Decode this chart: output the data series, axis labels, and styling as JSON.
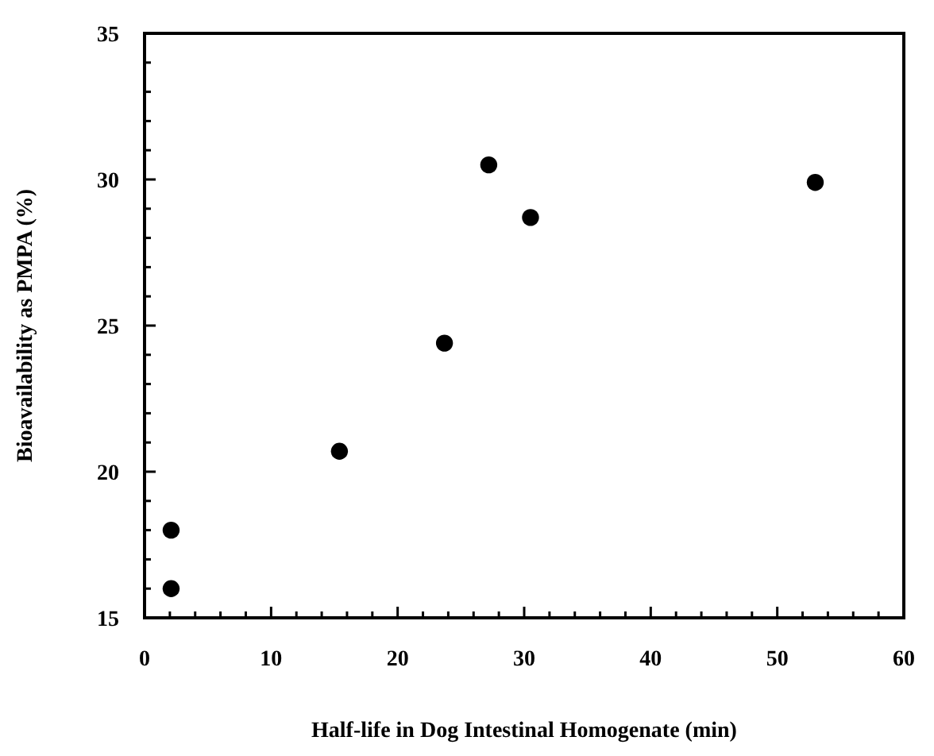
{
  "chart_data": {
    "type": "scatter",
    "xlabel": "Half-life in Dog Intestinal Homogenate (min)",
    "ylabel": "Bioavailability as PMPA (%)",
    "x": [
      2.1,
      2.1,
      15.4,
      23.7,
      27.2,
      30.5,
      53.0
    ],
    "series": [
      {
        "color": "#000000",
        "values": [
          18.0,
          16.0,
          20.7,
          24.4,
          30.5,
          28.7,
          29.9
        ]
      }
    ],
    "xlim": [
      0,
      60
    ],
    "ylim": [
      15,
      35
    ],
    "xticks": [
      0,
      {
        "value": 2,
        "label": null
      },
      {
        "value": 4,
        "label": null
      },
      {
        "value": 6,
        "label": null
      },
      {
        "value": 8,
        "label": null
      },
      10,
      {
        "value": 12,
        "label": null
      },
      {
        "value": 14,
        "label": null
      },
      {
        "value": 16,
        "label": null
      },
      {
        "value": 18,
        "label": null
      },
      20,
      {
        "value": 22,
        "label": null
      },
      {
        "value": 24,
        "label": null
      },
      {
        "value": 26,
        "label": null
      },
      {
        "value": 28,
        "label": null
      },
      30,
      {
        "value": 32,
        "label": null
      },
      {
        "value": 34,
        "label": null
      },
      {
        "value": 36,
        "label": null
      },
      {
        "value": 38,
        "label": null
      },
      40,
      {
        "value": 42,
        "label": null
      },
      {
        "value": 44,
        "label": null
      },
      {
        "value": 46,
        "label": null
      },
      {
        "value": 48,
        "label": null
      },
      50,
      {
        "value": 52,
        "label": null
      },
      {
        "value": 54,
        "label": null
      },
      {
        "value": 56,
        "label": null
      },
      {
        "value": 58,
        "label": null
      },
      60
    ],
    "yticks": [
      15,
      {
        "value": 16,
        "label": null
      },
      {
        "value": 17,
        "label": null
      },
      {
        "value": 18,
        "label": null
      },
      {
        "value": 19,
        "label": null
      },
      20,
      {
        "value": 21,
        "label": null
      },
      {
        "value": 22,
        "label": null
      },
      {
        "value": 23,
        "label": null
      },
      {
        "value": 24,
        "label": null
      },
      25,
      {
        "value": 26,
        "label": null
      },
      {
        "value": 27,
        "label": null
      },
      {
        "value": 28,
        "label": null
      },
      {
        "value": 29,
        "label": null
      },
      30,
      {
        "value": 31,
        "label": null
      },
      {
        "value": 32,
        "label": null
      },
      {
        "value": 33,
        "label": null
      },
      {
        "value": 34,
        "label": null
      },
      35
    ],
    "marker": "circle",
    "grid": false
  }
}
